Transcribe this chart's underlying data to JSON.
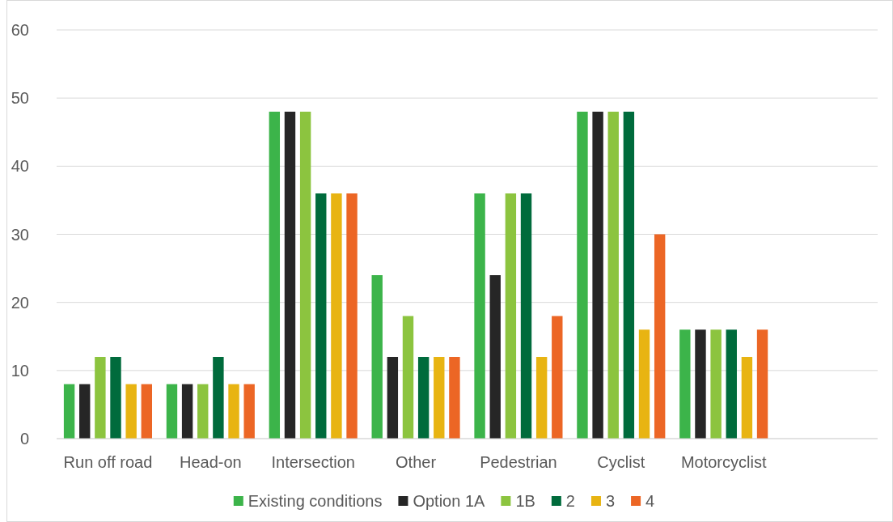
{
  "chart_data": {
    "type": "bar",
    "categories": [
      "Run off road",
      "Head-on",
      "Intersection",
      "Other",
      "Pedestrian",
      "Cyclist",
      "Motorcyclist",
      null
    ],
    "series": [
      {
        "name": "Existing conditions",
        "color": "#3cb44a",
        "values": [
          8,
          8,
          48,
          24,
          36,
          48,
          16,
          null
        ]
      },
      {
        "name": "Option 1A",
        "color": "#262626",
        "values": [
          8,
          8,
          48,
          12,
          24,
          48,
          16,
          null
        ]
      },
      {
        "name": "1B",
        "color": "#8cc43f",
        "values": [
          12,
          8,
          48,
          18,
          36,
          48,
          16,
          null
        ]
      },
      {
        "name": "2",
        "color": "#006b3c",
        "values": [
          12,
          12,
          36,
          12,
          36,
          48,
          16,
          null
        ]
      },
      {
        "name": "3",
        "color": "#e8b412",
        "values": [
          8,
          8,
          36,
          12,
          12,
          16,
          12,
          null
        ]
      },
      {
        "name": "4",
        "color": "#ec6625",
        "values": [
          8,
          8,
          36,
          12,
          18,
          30,
          16,
          null
        ]
      }
    ],
    "ylim": [
      0,
      60
    ],
    "yticks": [
      0,
      10,
      20,
      30,
      40,
      50,
      60
    ],
    "grid": "y",
    "legend": "bottom"
  }
}
